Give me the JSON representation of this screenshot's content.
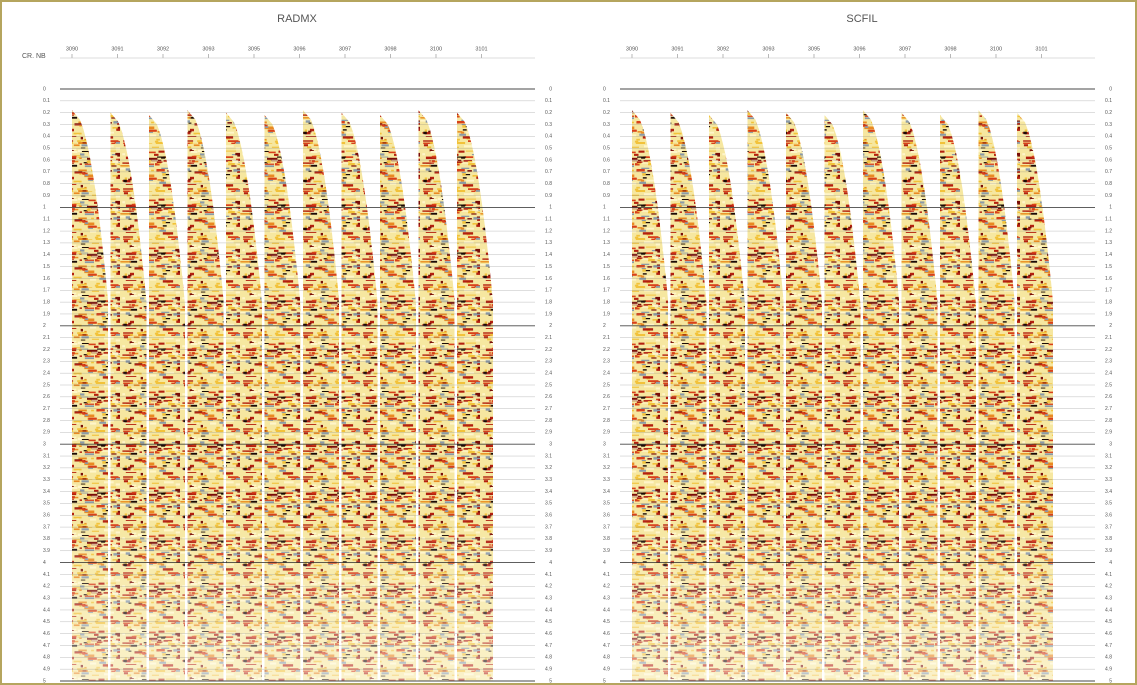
{
  "label": "CR. NB",
  "panels": [
    {
      "title": "RADMX",
      "traces": [
        "3090",
        "3091",
        "3092",
        "3093",
        "3095",
        "3096",
        "3097",
        "3098",
        "3100",
        "3101"
      ]
    },
    {
      "title": "SCFIL",
      "traces": [
        "3090",
        "3091",
        "3092",
        "3093",
        "3095",
        "3096",
        "3097",
        "3098",
        "3100",
        "3101"
      ]
    }
  ],
  "time_ticks": [
    0,
    0.1,
    0.2,
    0.3,
    0.4,
    0.5,
    0.6,
    0.7,
    0.8,
    0.9,
    1,
    1.1,
    1.2,
    1.3,
    1.4,
    1.5,
    1.6,
    1.7,
    1.8,
    1.9,
    2,
    2.1,
    2.2,
    2.3,
    2.4,
    2.5,
    2.6,
    2.7,
    2.8,
    2.9,
    3,
    3.1,
    3.2,
    3.3,
    3.4,
    3.5,
    3.6,
    3.7,
    3.8,
    3.9,
    4,
    4.1,
    4.2,
    4.3,
    4.4,
    4.5,
    4.6,
    4.7,
    4.8,
    4.9,
    5
  ]
}
